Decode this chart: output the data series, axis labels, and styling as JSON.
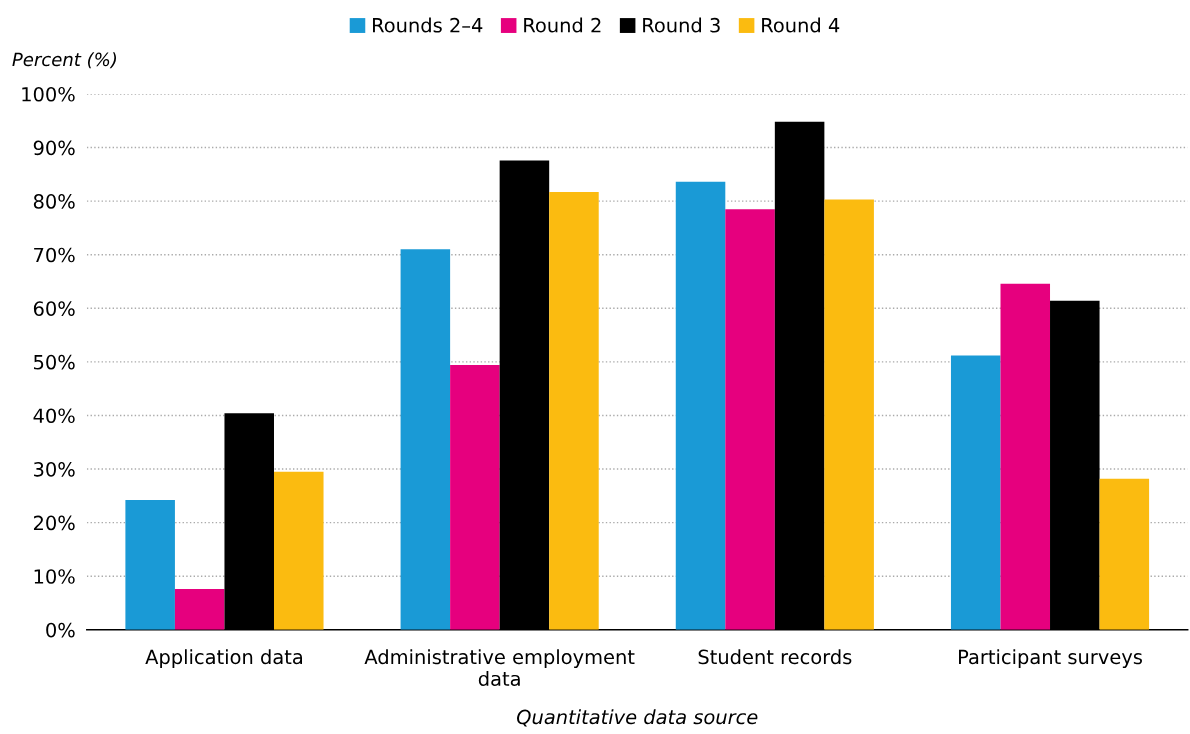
{
  "chart_data": {
    "type": "bar",
    "xlabel": "Quantitative data source",
    "ylabel": "Percent (%)",
    "categories": [
      "Application data",
      "Administrative employment\ndata",
      "Student records",
      "Participant surveys"
    ],
    "series": [
      {
        "name": "Rounds 2–4",
        "color": "#1a9ad6",
        "values": [
          24.2,
          71.0,
          83.6,
          51.2
        ]
      },
      {
        "name": "Round 2",
        "color": "#e6007e",
        "values": [
          7.6,
          49.4,
          78.5,
          64.6
        ]
      },
      {
        "name": "Round 3",
        "color": "#000000",
        "values": [
          40.4,
          87.6,
          94.8,
          61.4
        ]
      },
      {
        "name": "Round 4",
        "color": "#fbbb10",
        "values": [
          29.5,
          81.7,
          80.3,
          28.2
        ]
      }
    ],
    "ylim": [
      0,
      100
    ],
    "yticks": [
      {
        "value": 0,
        "label": "0%"
      },
      {
        "value": 10,
        "label": "10%"
      },
      {
        "value": 20,
        "label": "20%"
      },
      {
        "value": 30,
        "label": "30%"
      },
      {
        "value": 40,
        "label": "40%"
      },
      {
        "value": 50,
        "label": "50%"
      },
      {
        "value": 60,
        "label": "60%"
      },
      {
        "value": 70,
        "label": "70%"
      },
      {
        "value": 80,
        "label": "80%"
      },
      {
        "value": 90,
        "label": "90%"
      },
      {
        "value": 100,
        "label": "100%"
      }
    ],
    "grid": "y",
    "legend": "top"
  }
}
